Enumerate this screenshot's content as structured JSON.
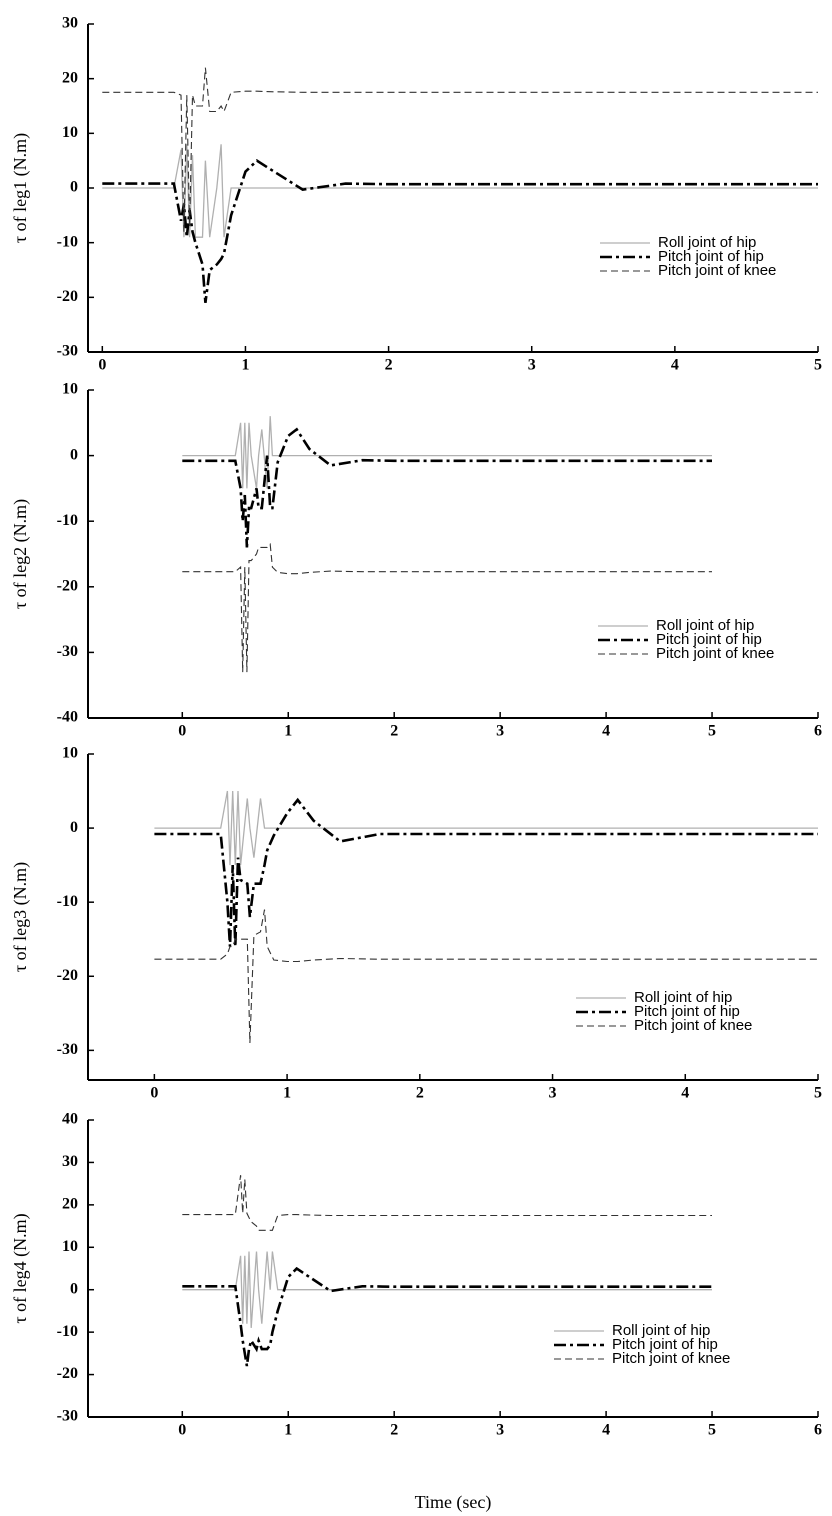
{
  "chart_data": [
    {
      "type": "line",
      "ylabel": "τ of leg1 (N.m)",
      "x": [
        0,
        0.5,
        0.55,
        0.57,
        0.59,
        0.61,
        0.63,
        0.65,
        0.7,
        0.72,
        0.75,
        0.8,
        0.83,
        0.85,
        0.9,
        1.0,
        1.08,
        1.2,
        1.4,
        1.7,
        2,
        5
      ],
      "xlim": [
        -0.1,
        5
      ],
      "xticks": [
        0,
        1,
        2,
        3,
        4,
        5
      ],
      "ylim": [
        -30,
        30
      ],
      "yticks": [
        -30,
        -20,
        -10,
        0,
        10,
        20,
        30
      ],
      "series": [
        {
          "name": "Roll joint of hip",
          "color": "#b0b0b0",
          "style": "solid",
          "values": [
            0,
            0,
            7,
            -9,
            8,
            -9,
            6,
            -9,
            -9,
            5,
            -9,
            0,
            8,
            -9,
            0,
            0,
            0,
            0,
            0,
            0,
            0,
            0
          ]
        },
        {
          "name": "Pitch joint of hip",
          "color": "#000000",
          "style": "dashdot",
          "values": [
            0.8,
            0.8,
            -6,
            -3,
            -9,
            -4,
            -8,
            -10,
            -14,
            -21,
            -15,
            -14,
            -13,
            -12,
            -5,
            3,
            5,
            3,
            -0.3,
            0.8,
            0.7,
            0.7
          ]
        },
        {
          "name": "Pitch joint of knee",
          "color": "#333333",
          "style": "dashed",
          "values": [
            17.5,
            17.5,
            17,
            -8,
            17,
            -7,
            17,
            15,
            15,
            22,
            14,
            14,
            15,
            14,
            17.5,
            17.7,
            17.7,
            17.6,
            17.5,
            17.5,
            17.5,
            17.5
          ]
        }
      ]
    },
    {
      "type": "line",
      "ylabel": "τ of leg2 (N.m)",
      "x": [
        0,
        0.5,
        0.55,
        0.57,
        0.59,
        0.61,
        0.63,
        0.65,
        0.7,
        0.72,
        0.75,
        0.8,
        0.83,
        0.85,
        0.9,
        1.0,
        1.08,
        1.2,
        1.4,
        1.7,
        2,
        5
      ],
      "xlim": [
        -0.89,
        6
      ],
      "xticks": [
        0,
        1,
        2,
        3,
        4,
        5,
        6
      ],
      "ylim": [
        -40,
        10
      ],
      "yticks": [
        -40,
        -30,
        -20,
        -10,
        0,
        10
      ],
      "series": [
        {
          "name": "Roll joint of hip",
          "color": "#b0b0b0",
          "style": "solid",
          "values": [
            0,
            0,
            5,
            -5,
            5,
            -5,
            5,
            0,
            -5,
            0,
            4,
            -5,
            6,
            0,
            0,
            0,
            0,
            0,
            0,
            0,
            0,
            0
          ]
        },
        {
          "name": "Pitch joint of hip",
          "color": "#000000",
          "style": "dashdot",
          "values": [
            -0.8,
            -0.8,
            -5,
            -10,
            -6,
            -14,
            -8,
            -8,
            -5,
            -8,
            -8,
            0,
            -8,
            -8,
            -1,
            3,
            4,
            1,
            -1.5,
            -0.7,
            -0.8,
            -0.8
          ]
        },
        {
          "name": "Pitch joint of knee",
          "color": "#333333",
          "style": "dashed",
          "values": [
            -17.7,
            -17.7,
            -17,
            -33,
            -17,
            -33,
            -16,
            -16,
            -15,
            -14,
            -14,
            -14,
            -13.5,
            -17,
            -17.8,
            -18,
            -18,
            -17.8,
            -17.6,
            -17.7,
            -17.7,
            -17.7
          ]
        }
      ]
    },
    {
      "type": "line",
      "ylabel": "τ of leg3 (N.m)",
      "x": [
        0,
        0.5,
        0.55,
        0.57,
        0.59,
        0.61,
        0.63,
        0.65,
        0.7,
        0.72,
        0.75,
        0.8,
        0.83,
        0.85,
        0.9,
        1.0,
        1.08,
        1.2,
        1.4,
        1.7,
        2,
        5
      ],
      "xlim": [
        -0.5,
        5
      ],
      "xticks": [
        0,
        1,
        2,
        3,
        4,
        5
      ],
      "ylim": [
        -34,
        10
      ],
      "yticks": [
        -30,
        -20,
        -10,
        0,
        10
      ],
      "series": [
        {
          "name": "Roll joint of hip",
          "color": "#b0b0b0",
          "style": "solid",
          "values": [
            0,
            0,
            5,
            -5,
            5,
            -5,
            5,
            -5,
            4,
            0,
            -4,
            4,
            0,
            0,
            0,
            0,
            0,
            0,
            0,
            0,
            0,
            0
          ]
        },
        {
          "name": "Pitch joint of hip",
          "color": "#000000",
          "style": "dashdot",
          "values": [
            -0.8,
            -0.8,
            -10,
            -16,
            -5,
            -16,
            -4,
            -7,
            -7.5,
            -12,
            -7.5,
            -7.5,
            -5,
            -3,
            -1,
            2,
            3.8,
            1,
            -1.8,
            -0.8,
            -0.8,
            -0.8
          ]
        },
        {
          "name": "Pitch joint of knee",
          "color": "#333333",
          "style": "dashed",
          "values": [
            -17.7,
            -17.7,
            -17,
            -16,
            -16,
            -15,
            -15,
            -15,
            -15,
            -29,
            -14.5,
            -14,
            -11,
            -16,
            -17.8,
            -18,
            -18,
            -17.8,
            -17.6,
            -17.7,
            -17.7,
            -17.7
          ]
        }
      ]
    },
    {
      "type": "line",
      "ylabel": "τ of leg4 (N.m)",
      "xlabel": "Time (sec)",
      "x": [
        0,
        0.5,
        0.55,
        0.57,
        0.59,
        0.61,
        0.63,
        0.65,
        0.7,
        0.72,
        0.75,
        0.8,
        0.83,
        0.85,
        0.9,
        1.0,
        1.08,
        1.2,
        1.4,
        1.7,
        2,
        5
      ],
      "xlim": [
        -0.89,
        6
      ],
      "xticks": [
        0,
        1,
        2,
        3,
        4,
        5,
        6
      ],
      "ylim": [
        -30,
        40
      ],
      "yticks": [
        -30,
        -20,
        -10,
        0,
        10,
        20,
        30,
        40
      ],
      "series": [
        {
          "name": "Roll joint of hip",
          "color": "#b0b0b0",
          "style": "solid",
          "values": [
            0,
            0,
            8,
            -8,
            8,
            -8,
            9,
            -9,
            9,
            0,
            -8,
            9,
            0,
            9,
            0,
            0,
            0,
            0,
            0,
            0,
            0,
            0
          ]
        },
        {
          "name": "Pitch joint of hip",
          "color": "#000000",
          "style": "dashdot",
          "values": [
            0.8,
            0.8,
            -8,
            -12,
            -15,
            -18,
            -14,
            -12,
            -14,
            -12,
            -14,
            -14,
            -13,
            -10,
            -5,
            3,
            5,
            3,
            -0.3,
            0.8,
            0.7,
            0.7
          ]
        },
        {
          "name": "Pitch joint of knee",
          "color": "#333333",
          "style": "dashed",
          "values": [
            17.7,
            17.7,
            27,
            18,
            26,
            18,
            17,
            16,
            15,
            14,
            14,
            14,
            14,
            14,
            17.5,
            17.7,
            17.7,
            17.6,
            17.5,
            17.5,
            17.5,
            17.5
          ]
        }
      ]
    }
  ]
}
